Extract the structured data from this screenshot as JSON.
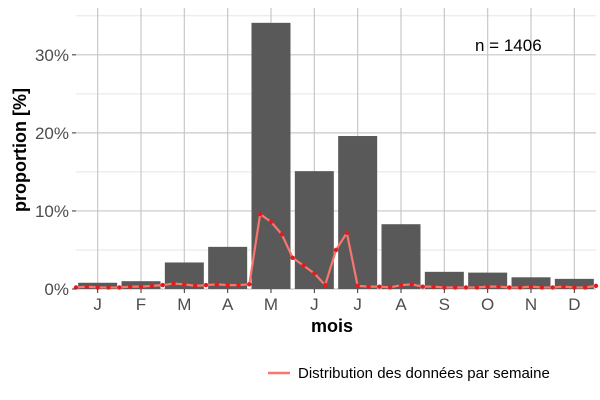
{
  "chart_data": {
    "type": "bar",
    "xlabel": "mois",
    "ylabel": "proportion [%]",
    "ylim": [
      0,
      36
    ],
    "y_ticks": [
      0,
      10,
      20,
      30
    ],
    "y_tick_labels": [
      "0%",
      "10%",
      "20%",
      "30%"
    ],
    "categories": [
      "J",
      "F",
      "M",
      "A",
      "M",
      "J",
      "J",
      "A",
      "S",
      "O",
      "N",
      "D"
    ],
    "values": [
      0.8,
      1.0,
      3.4,
      5.4,
      34.1,
      15.1,
      19.6,
      8.3,
      2.2,
      2.1,
      1.5,
      1.3
    ],
    "bar_color": "#595959",
    "annotation": "n = 1406",
    "grid": true,
    "weekly_series": {
      "name": "Distribution des données par semaine",
      "color_line": "#f8766d",
      "color_points": "#e41a1c",
      "x_months": [
        0.5,
        0.75,
        1.0,
        1.25,
        1.5,
        1.75,
        2.0,
        2.25,
        2.5,
        2.75,
        3.0,
        3.25,
        3.5,
        3.75,
        4.0,
        4.25,
        4.5,
        4.75,
        5.0,
        5.25,
        5.5,
        5.75,
        6.0,
        6.25,
        6.5,
        6.75,
        7.0,
        7.25,
        7.5,
        7.75,
        8.0,
        8.25,
        8.5,
        8.75,
        9.0,
        9.25,
        9.5,
        9.75,
        10.0,
        10.25,
        10.5,
        10.75,
        11.0,
        11.25,
        11.5,
        11.75,
        12.0,
        12.25,
        12.5
      ],
      "values": [
        0.2,
        0.3,
        0.2,
        0.2,
        0.2,
        0.3,
        0.3,
        0.4,
        0.5,
        0.7,
        0.6,
        0.4,
        0.5,
        0.6,
        0.5,
        0.5,
        0.6,
        9.6,
        8.6,
        7.0,
        4.0,
        3.0,
        2.0,
        0.5,
        5.0,
        7.2,
        0.4,
        0.3,
        0.3,
        0.2,
        0.5,
        0.6,
        0.3,
        0.3,
        0.2,
        0.2,
        0.2,
        0.2,
        0.3,
        0.3,
        0.2,
        0.2,
        0.3,
        0.2,
        0.2,
        0.3,
        0.2,
        0.2,
        0.4
      ]
    },
    "legend": {
      "position": "bottom-right",
      "label": "Distribution des données par semaine"
    }
  }
}
